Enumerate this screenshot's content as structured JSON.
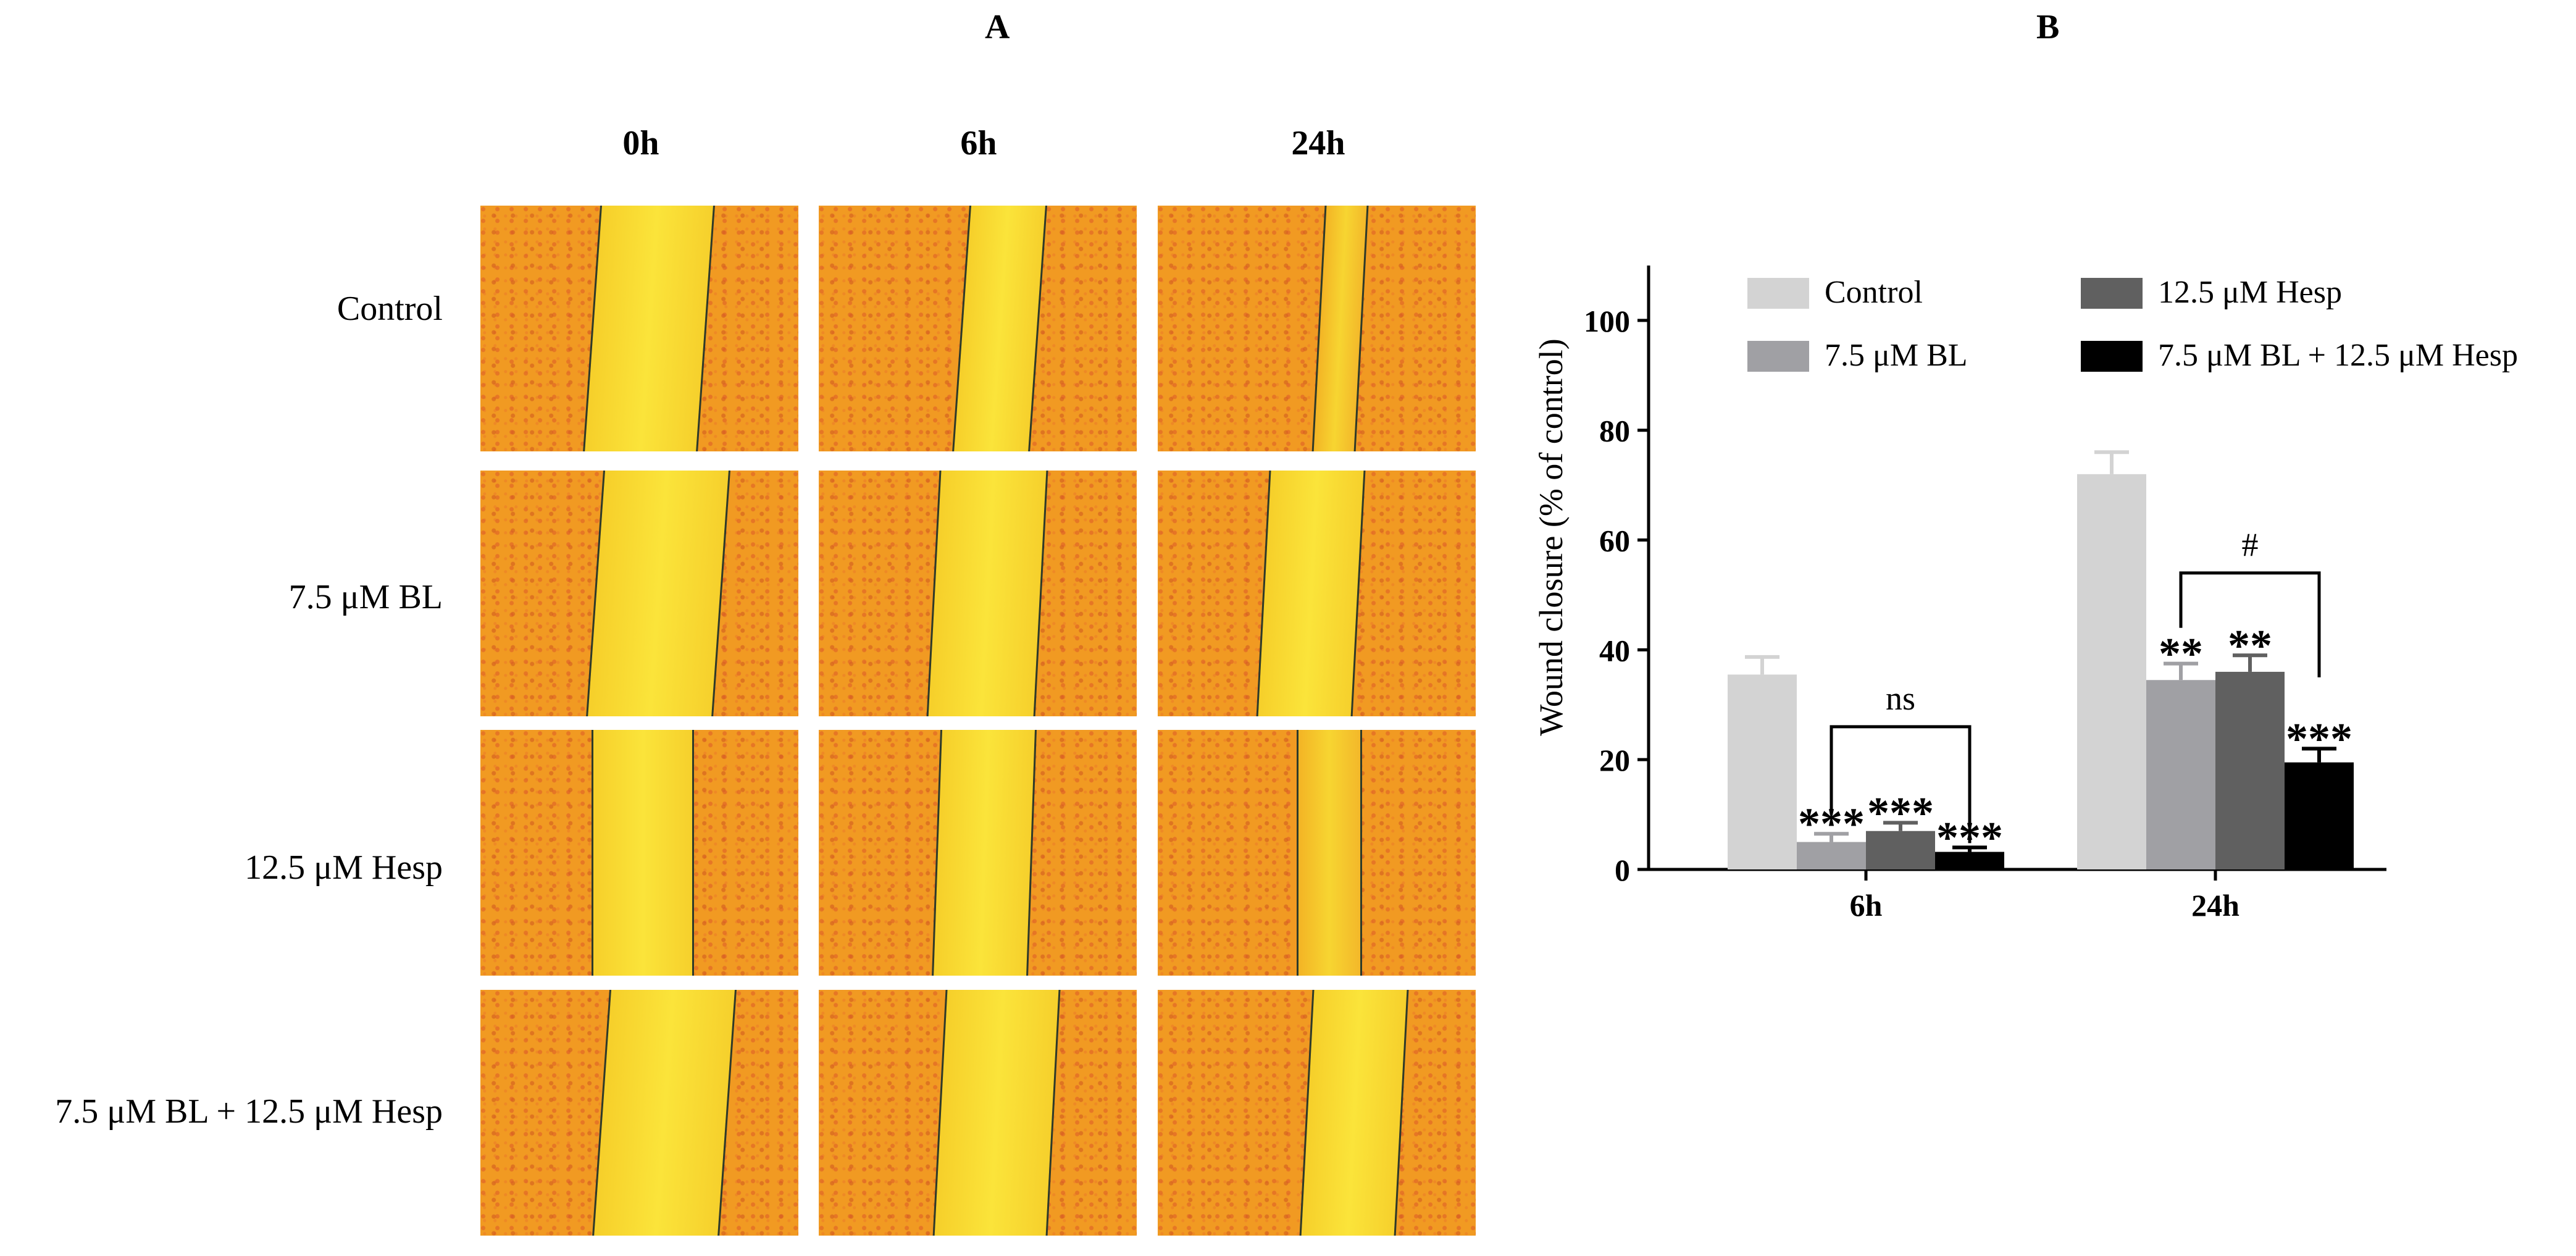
{
  "panel_a": {
    "letter": "A",
    "time_points": [
      "0h",
      "6h",
      "24h"
    ],
    "rows": [
      "Control",
      "7.5 μM BL",
      "12.5 μM Hesp",
      "7.5 μM BL + 12.5 μM Hesp"
    ]
  },
  "panel_b": {
    "letter": "B"
  },
  "chart_data": {
    "type": "bar",
    "title": "",
    "xlabel": "",
    "ylabel": "Wound closure (% of control)",
    "ylim": [
      0,
      110
    ],
    "yticks": [
      "0",
      "20",
      "40",
      "60",
      "80",
      "100"
    ],
    "categories": [
      "6h",
      "24h"
    ],
    "series": [
      {
        "name": "Control",
        "color": "#d3d3d3",
        "values": [
          35.5,
          72
        ],
        "errors": [
          3.2,
          4
        ],
        "sig": [
          "",
          ""
        ]
      },
      {
        "name": "7.5 μM BL",
        "color": "#a0a0a4",
        "values": [
          5,
          34.5
        ],
        "errors": [
          1.5,
          3
        ],
        "sig": [
          "***",
          "**"
        ]
      },
      {
        "name": "12.5 μM Hesp",
        "color": "#606060",
        "values": [
          7,
          36
        ],
        "errors": [
          1.5,
          3
        ],
        "sig": [
          "***",
          "**"
        ]
      },
      {
        "name": "7.5 μM BL + 12.5 μM Hesp",
        "color": "#000000",
        "values": [
          3.2,
          19.5
        ],
        "errors": [
          0.8,
          2.5
        ],
        "sig": [
          "***",
          "***"
        ]
      }
    ],
    "brackets": [
      {
        "category": "6h",
        "from_series": 1,
        "to_series": 3,
        "label": "ns"
      },
      {
        "category": "24h",
        "from_series": 1,
        "to_series": 3,
        "label": "#"
      }
    ],
    "legend": "top"
  }
}
